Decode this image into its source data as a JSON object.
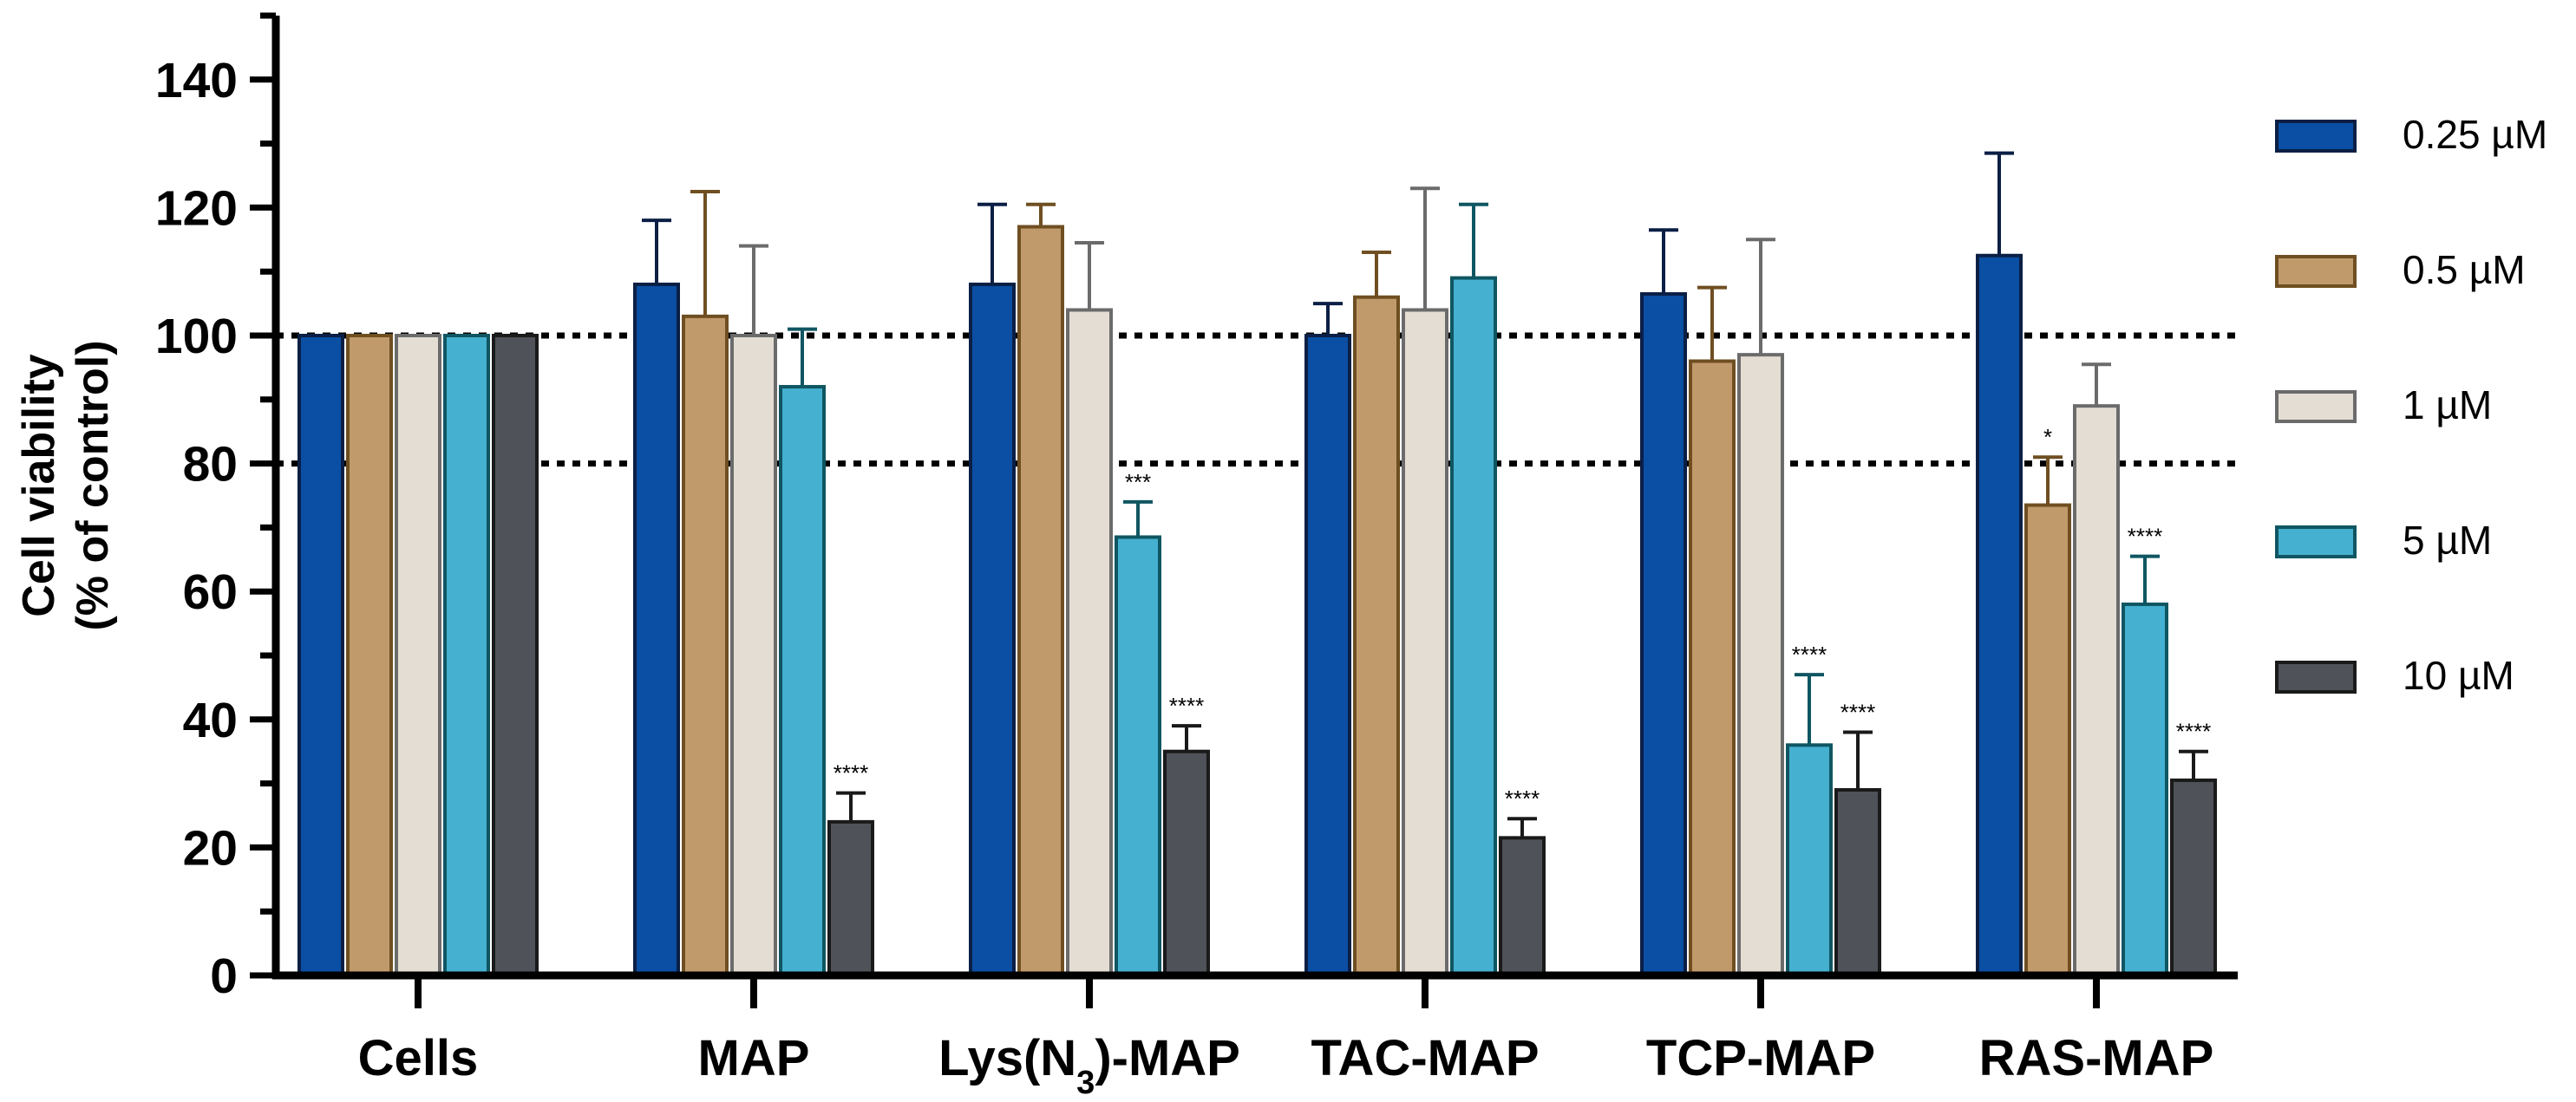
{
  "chart_data": {
    "type": "bar",
    "title": "",
    "xlabel": "",
    "ylabel": [
      "Cell viability",
      "(% of control)"
    ],
    "ylim": [
      0,
      150
    ],
    "yticks": [
      0,
      20,
      40,
      60,
      80,
      100,
      120,
      140
    ],
    "reference_lines": [
      100,
      80
    ],
    "categories": [
      "Cells",
      "MAP",
      "Lys(N3)-MAP",
      "TAC-MAP",
      "TCP-MAP",
      "RAS-MAP"
    ],
    "category_label_parts": [
      [
        "Cells"
      ],
      [
        "MAP"
      ],
      [
        "Lys(N",
        "3",
        ")-MAP"
      ],
      [
        "TAC-MAP"
      ],
      [
        "TCP-MAP"
      ],
      [
        "RAS-MAP"
      ]
    ],
    "legend_position": "top-right",
    "series": [
      {
        "name": "0.25 µM",
        "fill": "#0a4fa3",
        "edge": "#0b1f45",
        "values": [
          100,
          108,
          108,
          100,
          106.5,
          112.5
        ],
        "errors": [
          0,
          10,
          12.5,
          5,
          10,
          16
        ],
        "sig": [
          "",
          "",
          "",
          "",
          "",
          ""
        ]
      },
      {
        "name": "0.5 µM",
        "fill": "#c19a6b",
        "edge": "#6f4f22",
        "values": [
          100,
          103,
          117,
          106,
          96,
          73.5
        ],
        "errors": [
          0,
          19.5,
          3.5,
          7,
          11.5,
          7.5
        ],
        "sig": [
          "",
          "",
          "",
          "",
          "",
          "*"
        ]
      },
      {
        "name": "1 µM",
        "fill": "#e4ddd3",
        "edge": "#6b6b6b",
        "values": [
          100,
          100,
          104,
          104,
          97,
          89
        ],
        "errors": [
          0,
          14,
          10.5,
          19,
          18,
          6.5
        ],
        "sig": [
          "",
          "",
          "",
          "",
          "",
          ""
        ]
      },
      {
        "name": "5 µM",
        "fill": "#45b0cf",
        "edge": "#0f5662",
        "values": [
          100,
          92,
          68.5,
          109,
          36,
          58
        ],
        "errors": [
          0,
          9,
          5.5,
          11.5,
          11,
          7.5
        ],
        "sig": [
          "",
          "",
          "***",
          "",
          "****",
          "****"
        ]
      },
      {
        "name": "10 µM",
        "fill": "#4f5258",
        "edge": "#1a1a1a",
        "values": [
          100,
          24,
          35,
          21.5,
          29,
          30.5
        ],
        "errors": [
          0,
          4.5,
          4,
          3,
          9,
          4.5
        ],
        "sig": [
          "",
          "****",
          "****",
          "****",
          "****",
          "****"
        ]
      }
    ]
  }
}
